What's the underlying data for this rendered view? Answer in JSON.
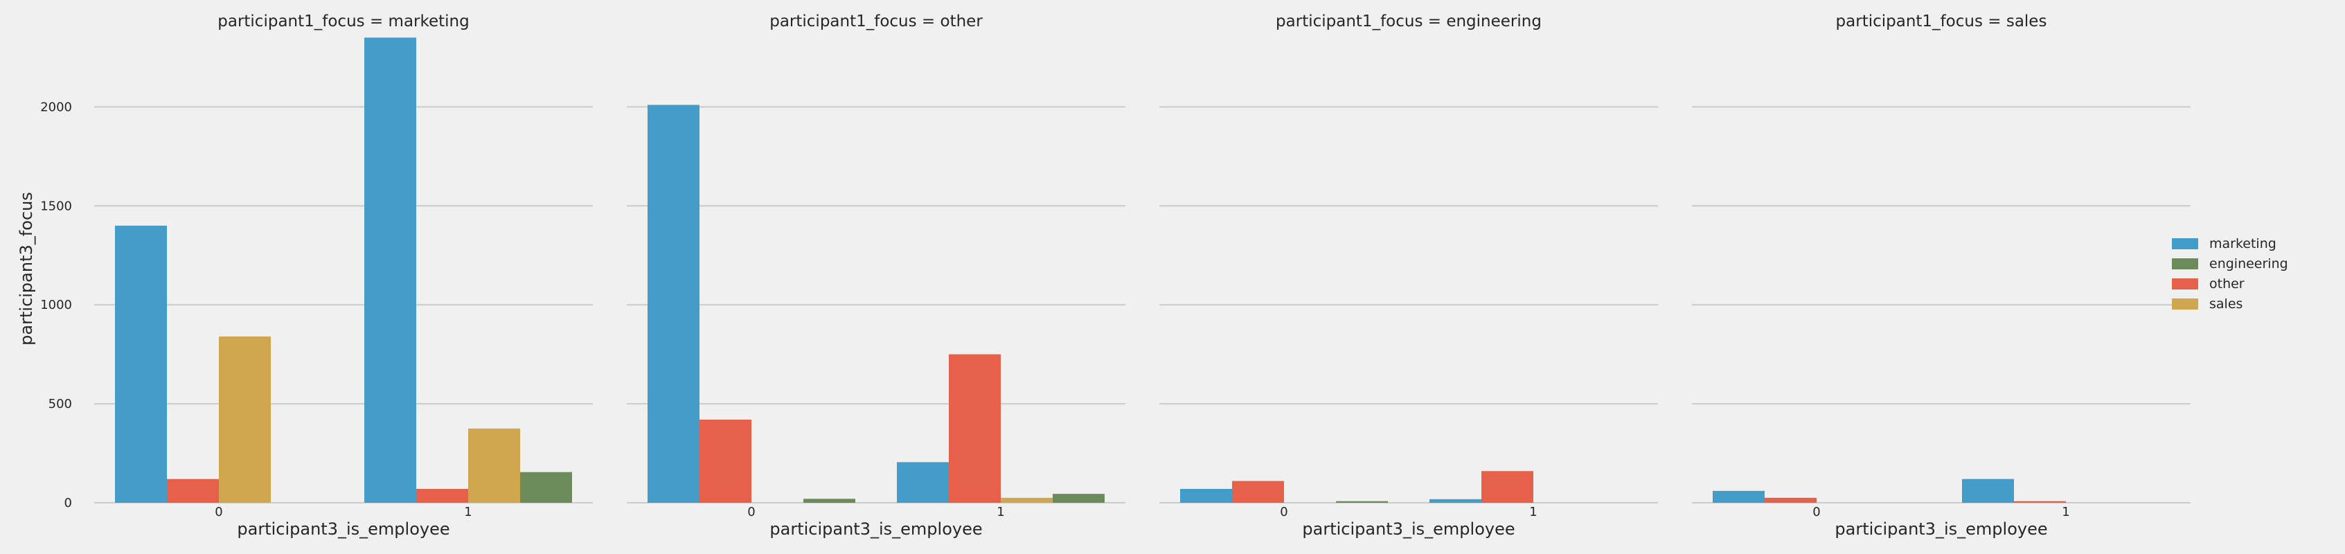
{
  "chart_data": {
    "type": "bar",
    "ylabel": "participant3_focus",
    "xlabel": "participant3_is_employee",
    "ylim": [
      0,
      2400
    ],
    "yticks": [
      "0",
      "500",
      "1000",
      "1500",
      "2000"
    ],
    "categories": [
      "0",
      "1"
    ],
    "grid": "horizontal",
    "legend": {
      "placement": "right",
      "entries": [
        "marketing",
        "engineering",
        "other",
        "sales"
      ]
    },
    "series_colors": {
      "marketing": "#449dc8",
      "other": "#e6604a",
      "sales": "#d0a64f",
      "engineering": "#6b8c59"
    },
    "panels": [
      {
        "title": "participant1_focus = marketing",
        "series": [
          {
            "name": "marketing",
            "values": [
              1400,
              2350
            ]
          },
          {
            "name": "other",
            "values": [
              120,
              70
            ]
          },
          {
            "name": "sales",
            "values": [
              840,
              375
            ]
          },
          {
            "name": "engineering",
            "values": [
              0,
              155
            ]
          }
        ]
      },
      {
        "title": "participant1_focus = other",
        "series": [
          {
            "name": "marketing",
            "values": [
              2010,
              205
            ]
          },
          {
            "name": "other",
            "values": [
              420,
              750
            ]
          },
          {
            "name": "sales",
            "values": [
              0,
              25
            ]
          },
          {
            "name": "engineering",
            "values": [
              20,
              45
            ]
          }
        ]
      },
      {
        "title": "participant1_focus = engineering",
        "series": [
          {
            "name": "marketing",
            "values": [
              70,
              18
            ]
          },
          {
            "name": "other",
            "values": [
              110,
              160
            ]
          },
          {
            "name": "sales",
            "values": [
              0,
              0
            ]
          },
          {
            "name": "engineering",
            "values": [
              8,
              0
            ]
          }
        ]
      },
      {
        "title": "participant1_focus = sales",
        "series": [
          {
            "name": "marketing",
            "values": [
              60,
              120
            ]
          },
          {
            "name": "other",
            "values": [
              25,
              8
            ]
          },
          {
            "name": "sales",
            "values": [
              0,
              0
            ]
          },
          {
            "name": "engineering",
            "values": [
              0,
              0
            ]
          }
        ]
      }
    ]
  }
}
